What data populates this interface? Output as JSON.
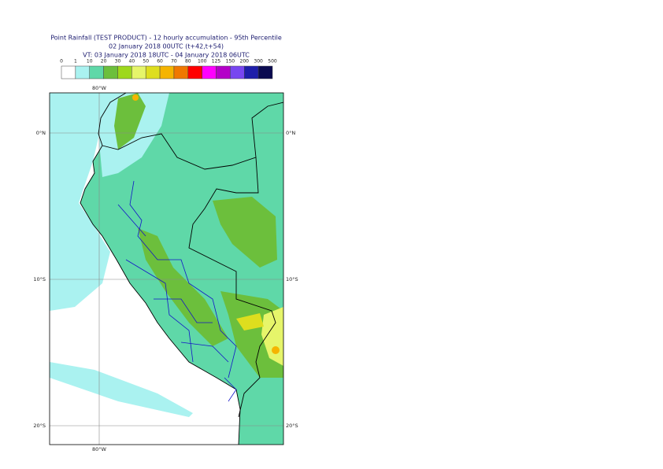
{
  "header": {
    "title": "Point Rainfall (TEST PRODUCT) - 12 hourly accumulation - 95th Percentile",
    "base_time": "02 January 2018 00UTC (t+42,t+54)",
    "valid_time": "VT: 03 January 2018 18UTC - 04 January 2018 06UTC"
  },
  "legend": {
    "thresholds": [
      0,
      1,
      10,
      20,
      30,
      40,
      50,
      60,
      70,
      80,
      100,
      125,
      150,
      200,
      300,
      500
    ],
    "colors": [
      "#ffffff",
      "#aaf2f0",
      "#5fd8a8",
      "#6cbf3c",
      "#9ed81c",
      "#e6f56a",
      "#dede1e",
      "#f5b400",
      "#f07800",
      "#ff0000",
      "#ff00ff",
      "#b400c8",
      "#7846f0",
      "#1e1eaa",
      "#0a0a50"
    ]
  },
  "map": {
    "lon_label": "80°W",
    "lat_labels": [
      "0°N",
      "10°S",
      "20°S"
    ]
  }
}
